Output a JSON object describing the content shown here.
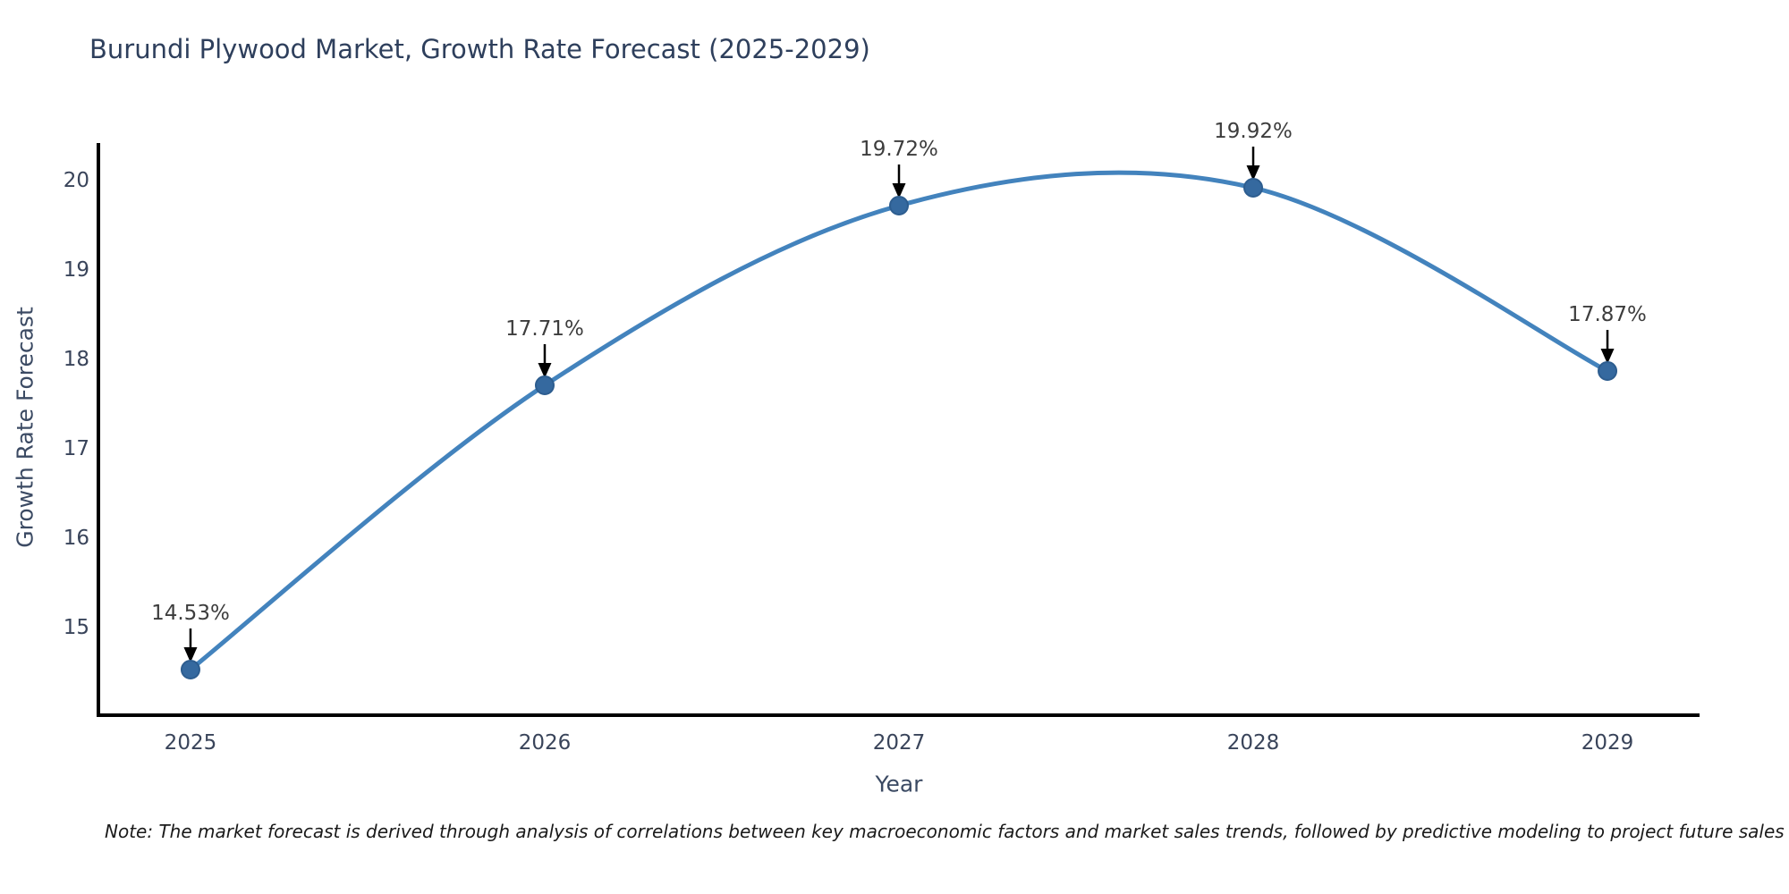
{
  "chart_data": {
    "type": "line",
    "title": "Burundi Plywood Market, Growth Rate Forecast (2025-2029)",
    "xlabel": "Year",
    "ylabel": "Growth Rate Forecast",
    "x": [
      2025,
      2026,
      2027,
      2028,
      2029
    ],
    "categories": [
      "2025",
      "2026",
      "2027",
      "2028",
      "2029"
    ],
    "series": [
      {
        "name": "Growth Rate Forecast",
        "values": [
          14.53,
          17.71,
          19.72,
          19.92,
          17.87
        ]
      }
    ],
    "point_labels": [
      "14.53%",
      "17.71%",
      "19.72%",
      "19.92%",
      "17.87%"
    ],
    "x_ticks": [
      "2025",
      "2026",
      "2027",
      "2028",
      "2029"
    ],
    "y_ticks": [
      15,
      16,
      17,
      18,
      19,
      20
    ],
    "x_range": [
      2024.74,
      2029.26
    ],
    "y_range": [
      14.02,
      20.42
    ],
    "grid": false,
    "legend": "none",
    "line_shape": "spline",
    "colors": {
      "line": "#4383bd",
      "marker_fill": "#35699f",
      "marker_stroke": "#2d5d8f",
      "axis": "#000000",
      "arrow": "#000000",
      "title": "#2e3f5c",
      "axis_title": "#3b4a63",
      "tick": "#39445a",
      "annotation": "#3d3d3d",
      "background": "#ffffff"
    }
  },
  "note": "Note: The market forecast is derived through analysis of correlations between key macroeconomic factors and market sales trends, followed by predictive modeling to project future sales"
}
